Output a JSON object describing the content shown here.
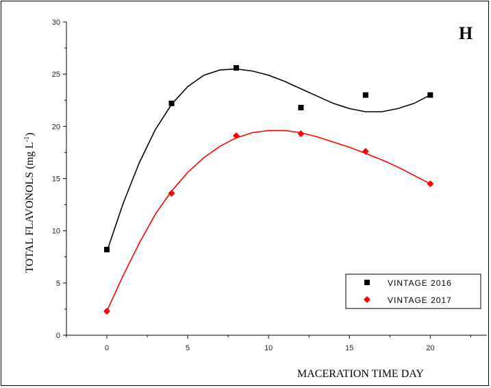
{
  "chart_data": {
    "type": "scatter",
    "panel_label": "H",
    "xlabel": "MACERATION TIME DAY",
    "ylabel": "TOTAL FLAVONOLS (mg L",
    "ylabel_sup": "-1",
    "ylabel_close": ")",
    "xlim": [
      -2.5,
      23.5
    ],
    "ylim": [
      0,
      30
    ],
    "xticks": [
      0,
      5,
      10,
      15,
      20
    ],
    "xtick_labels": [
      "0",
      "5",
      "10",
      "15",
      "20"
    ],
    "yticks": [
      0,
      5,
      10,
      15,
      20,
      25,
      30
    ],
    "ytick_labels": [
      "0",
      "5",
      "10",
      "15",
      "20",
      "25",
      "30"
    ],
    "legend_position": "bottom-right",
    "grid": false,
    "series": [
      {
        "name": "VINTAGE 2016",
        "marker": "square",
        "color": "#000000",
        "x": [
          0,
          4,
          8,
          12,
          16,
          20
        ],
        "y": [
          8.2,
          22.2,
          25.6,
          21.8,
          23.0,
          23.0
        ],
        "fit_x": [
          0,
          1,
          2,
          3,
          4,
          5,
          6,
          7,
          8,
          9,
          10,
          11,
          12,
          13,
          14,
          15,
          16,
          17,
          18,
          19,
          20
        ],
        "fit_y": [
          8.0,
          12.6,
          16.5,
          19.7,
          22.1,
          23.8,
          24.9,
          25.4,
          25.5,
          25.3,
          24.9,
          24.3,
          23.6,
          22.9,
          22.2,
          21.7,
          21.4,
          21.4,
          21.7,
          22.2,
          23.0
        ]
      },
      {
        "name": "VINTAGE 2017",
        "marker": "diamond",
        "color": "#ff0000",
        "x": [
          0,
          4,
          8,
          12,
          16,
          20
        ],
        "y": [
          2.3,
          13.6,
          19.1,
          19.3,
          17.6,
          14.5
        ],
        "fit_x": [
          0,
          1,
          2,
          3,
          4,
          5,
          6,
          7,
          8,
          9,
          10,
          11,
          12,
          13,
          14,
          15,
          16,
          17,
          18,
          19,
          20
        ],
        "fit_y": [
          2.3,
          5.7,
          8.8,
          11.6,
          13.8,
          15.6,
          17.0,
          18.1,
          18.9,
          19.4,
          19.6,
          19.6,
          19.4,
          19.0,
          18.5,
          18.0,
          17.4,
          16.8,
          16.1,
          15.3,
          14.5
        ]
      }
    ]
  }
}
